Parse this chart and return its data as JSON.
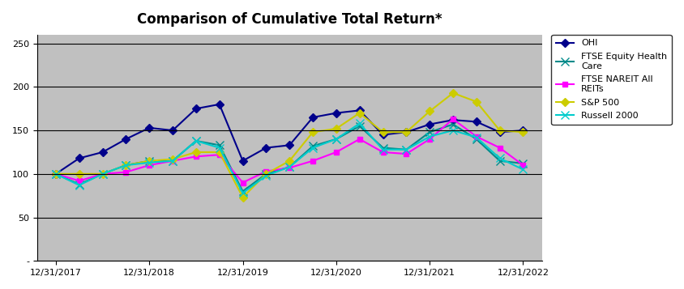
{
  "title": "Comparison of Cumulative Total Return*",
  "x_labels": [
    "12/31/2017",
    "12/31/2018",
    "12/31/2019",
    "12/31/2020",
    "12/31/2021",
    "12/31/2022"
  ],
  "series": [
    {
      "name": "OHI",
      "color": "#00008B",
      "marker": "D",
      "markersize": 5,
      "linewidth": 1.5,
      "values": [
        100,
        118,
        125,
        140,
        153,
        150,
        175,
        180,
        115,
        130,
        133,
        165,
        170,
        173,
        145,
        148,
        157,
        162,
        160,
        148,
        150
      ]
    },
    {
      "name": "FTSE Equity Health Care",
      "color": "#008B8B",
      "marker": "x",
      "markersize": 7,
      "linewidth": 1.5,
      "values": [
        100,
        88,
        100,
        110,
        115,
        115,
        138,
        133,
        80,
        100,
        108,
        132,
        140,
        155,
        130,
        128,
        148,
        157,
        140,
        115,
        112
      ]
    },
    {
      "name": "FTSE NAREIT All REITs",
      "color": "#FF00FF",
      "marker": "s",
      "markersize": 5,
      "linewidth": 1.5,
      "values": [
        100,
        92,
        100,
        102,
        110,
        115,
        120,
        122,
        90,
        103,
        107,
        115,
        125,
        140,
        125,
        123,
        140,
        163,
        143,
        130,
        110
      ]
    },
    {
      "name": "S&P 500",
      "color": "#CCCC00",
      "marker": "D",
      "markersize": 5,
      "linewidth": 1.5,
      "values": [
        100,
        100,
        100,
        110,
        115,
        117,
        125,
        125,
        73,
        100,
        115,
        148,
        152,
        170,
        148,
        148,
        172,
        193,
        183,
        150,
        148
      ]
    },
    {
      "name": "Russell 2000",
      "color": "#00CCCC",
      "marker": "x",
      "markersize": 7,
      "linewidth": 1.5,
      "values": [
        100,
        87,
        100,
        110,
        113,
        115,
        138,
        130,
        78,
        98,
        108,
        130,
        140,
        158,
        128,
        128,
        143,
        150,
        142,
        118,
        105
      ]
    }
  ],
  "ylim": [
    0,
    260
  ],
  "yticks": [
    0,
    50,
    100,
    150,
    200,
    250
  ],
  "ytick_labels": [
    "-",
    "50",
    "100",
    "150",
    "200",
    "250"
  ],
  "fig_bg_color": "#FFFFFF",
  "plot_area_color": "#C0C0C0",
  "title_fontsize": 12,
  "legend_fontsize": 8,
  "legend_labels": {
    "OHI": "OHI",
    "FTSE Equity Health Care": "FTSE Equity Health\nCare",
    "FTSE NAREIT All REITs": "FTSE NAREIT All\nREITs",
    "S&P 500": "S&P 500",
    "Russell 2000": "Russell 2000"
  }
}
